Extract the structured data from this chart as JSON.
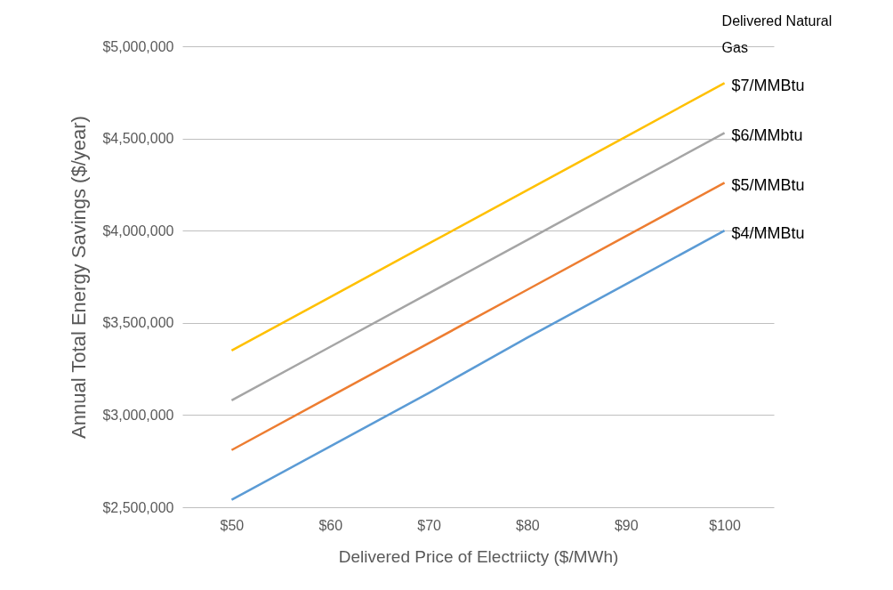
{
  "chart_data": {
    "type": "line",
    "xlabel": "Delivered Price of Electriicty ($/MWh)",
    "ylabel": "Annual Total Energy Savings ($/year)",
    "legend_title": "Delivered Natural Gas",
    "categories": [
      "$50",
      "$60",
      "$70",
      "$80",
      "$90",
      "$100"
    ],
    "series": [
      {
        "name": "$4/MMBtu",
        "color": "#5b9bd5",
        "values": [
          2540000,
          2830000,
          3120000,
          3420000,
          3710000,
          4000000
        ]
      },
      {
        "name": "$5/MMBtu",
        "color": "#ed7d31",
        "values": [
          2810000,
          3100000,
          3390000,
          3680000,
          3970000,
          4260000
        ]
      },
      {
        "name": "$6/MMbtu",
        "color": "#a5a5a5",
        "values": [
          3080000,
          3370000,
          3660000,
          3950000,
          4240000,
          4530000
        ]
      },
      {
        "name": "$7/MMBtu",
        "color": "#ffc000",
        "values": [
          3350000,
          3640000,
          3930000,
          4220000,
          4510000,
          4800000
        ]
      }
    ],
    "ylim": [
      2500000,
      5000000
    ],
    "yticks": [
      {
        "value": 2500000,
        "label": "$2,500,000"
      },
      {
        "value": 3000000,
        "label": "$3,000,000"
      },
      {
        "value": 3500000,
        "label": "$3,500,000"
      },
      {
        "value": 4000000,
        "label": "$4,000,000"
      },
      {
        "value": 4500000,
        "label": "$4,500,000"
      },
      {
        "value": 5000000,
        "label": "$5,000,000"
      }
    ],
    "grid": "y",
    "marker": "none",
    "line_style": "solid"
  }
}
